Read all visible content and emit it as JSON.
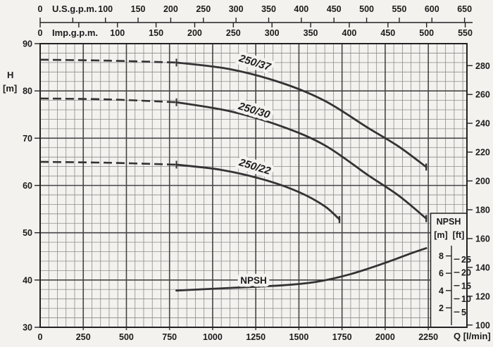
{
  "chart_data": {
    "type": "line",
    "description": "Pump head/capacity performance curves with NPSH curve",
    "axes": {
      "top_us": {
        "label": "U.S.g.p.m.",
        "lmin_per_unit": 3.785,
        "tick_step": 50,
        "tick_min": 0,
        "tick_max": 650,
        "labeled_ticks": [
          0,
          100,
          150,
          200,
          250,
          300,
          350,
          400,
          450,
          500,
          550,
          600,
          650
        ]
      },
      "top_imp": {
        "label": "Imp.g.p.m.",
        "lmin_per_unit": 4.48,
        "tick_step": 50,
        "tick_min": 0,
        "tick_max": 550,
        "labeled_ticks": [
          0,
          100,
          150,
          200,
          250,
          300,
          350,
          400,
          450,
          500,
          550
        ]
      },
      "bottom": {
        "label": "Q [l/min]",
        "min": 0,
        "max": 2474,
        "minor_step": 50,
        "major_ticks": [
          0,
          250,
          500,
          750,
          1000,
          1250,
          1500,
          1750,
          2000,
          2250
        ]
      },
      "left": {
        "title": "H",
        "unit": "[m]",
        "min": 30,
        "max": 90,
        "minor_step": 2,
        "major_ticks": [
          90,
          80,
          70,
          60,
          50,
          40,
          30
        ]
      },
      "right": {
        "unit": "ft",
        "m_per_ft": 0.3048,
        "ticks": [
          280,
          260,
          240,
          220,
          200,
          180,
          160,
          140,
          120,
          100
        ]
      }
    },
    "series": [
      {
        "name": "250/37",
        "axis": "H",
        "dash_until": 790,
        "end_tick": true,
        "points": [
          [
            0,
            86.6
          ],
          [
            400,
            86.4
          ],
          [
            790,
            86.0
          ],
          [
            1100,
            84.6
          ],
          [
            1400,
            81.7
          ],
          [
            1650,
            77.9
          ],
          [
            1900,
            72.2
          ],
          [
            2080,
            68.2
          ],
          [
            2238,
            63.9
          ]
        ],
        "label": {
          "text": "250/37",
          "q": 1245,
          "h_m": 86.0,
          "rotation_deg": 17
        }
      },
      {
        "name": "250/30",
        "axis": "H",
        "dash_until": 790,
        "end_tick": true,
        "points": [
          [
            0,
            78.4
          ],
          [
            400,
            78.2
          ],
          [
            790,
            77.6
          ],
          [
            1100,
            75.7
          ],
          [
            1400,
            72.5
          ],
          [
            1650,
            68.5
          ],
          [
            1900,
            62.2
          ],
          [
            2080,
            57.8
          ],
          [
            2238,
            53.0
          ]
        ],
        "label": {
          "text": "250/30",
          "q": 1241,
          "h_m": 75.9,
          "rotation_deg": 17
        }
      },
      {
        "name": "250/22",
        "axis": "H",
        "dash_until": 790,
        "end_tick": true,
        "points": [
          [
            0,
            65.0
          ],
          [
            400,
            64.8
          ],
          [
            790,
            64.4
          ],
          [
            1050,
            63.3
          ],
          [
            1300,
            61.2
          ],
          [
            1500,
            58.6
          ],
          [
            1650,
            55.6
          ],
          [
            1735,
            52.8
          ]
        ],
        "label": {
          "text": "250/22",
          "q": 1245,
          "h_m": 64.0,
          "rotation_deg": 17
        }
      },
      {
        "name": "NPSH",
        "axis": "NPSH",
        "dash_until": null,
        "end_tick": false,
        "points": [
          [
            790,
            4.0
          ],
          [
            1100,
            4.3
          ],
          [
            1400,
            4.6
          ],
          [
            1600,
            5.0
          ],
          [
            1800,
            5.9
          ],
          [
            2000,
            7.2
          ],
          [
            2150,
            8.3
          ],
          [
            2238,
            8.9
          ]
        ],
        "label": {
          "text": "NPSH",
          "q": 1237,
          "h_m": 40.0,
          "rotation_deg": 0
        }
      }
    ],
    "npsh_scale": {
      "title": "NPSH",
      "unit_m": "[m]",
      "unit_ft": "[ft]",
      "m_ticks": [
        8,
        6,
        4,
        2
      ],
      "ft_ticks": [
        25,
        20,
        15,
        10,
        5
      ]
    },
    "colors": {
      "background": "#f3f2ef",
      "grid_minor": "#8c8c8c",
      "grid_major": "#454545",
      "border": "#222222",
      "curve": "#333333",
      "text": "#1c1c1c"
    }
  },
  "labels": {
    "h_title": "H",
    "h_unit": "[m]",
    "q_label": "Q [l/min]"
  }
}
